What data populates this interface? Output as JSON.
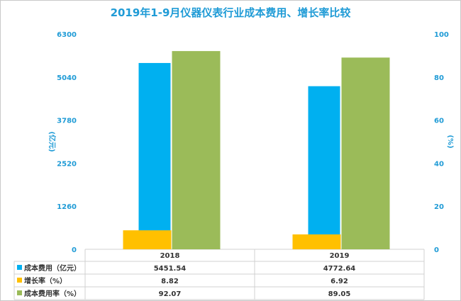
{
  "chart_data": {
    "type": "bar",
    "title": "2019年1-9月仪器仪表行业成本费用、增长率比较",
    "categories": [
      "2018",
      "2019"
    ],
    "y_left": {
      "label": "(亿元)",
      "ticks": [
        "0",
        "1260",
        "2520",
        "3780",
        "5040",
        "6300"
      ],
      "range": [
        0,
        6300
      ]
    },
    "y_right": {
      "label": "(%)",
      "ticks": [
        "0",
        "20",
        "40",
        "60",
        "80",
        "100"
      ],
      "range": [
        0,
        100
      ]
    },
    "series": [
      {
        "name": "成本费用（亿元）",
        "axis": "left",
        "color": "#00b0f0",
        "values": [
          5451.54,
          4772.64
        ],
        "labels": [
          "5451.54",
          "4772.64"
        ]
      },
      {
        "name": "增长率（%）",
        "axis": "right",
        "color": "#ffc000",
        "values": [
          8.82,
          6.92
        ],
        "labels": [
          "8.82",
          "6.92"
        ]
      },
      {
        "name": "成本费用率（%）",
        "axis": "right",
        "color": "#9bbb59",
        "values": [
          92.07,
          89.05
        ],
        "labels": [
          "92.07",
          "89.05"
        ]
      }
    ],
    "grid": false,
    "legend": "data-table-below"
  }
}
